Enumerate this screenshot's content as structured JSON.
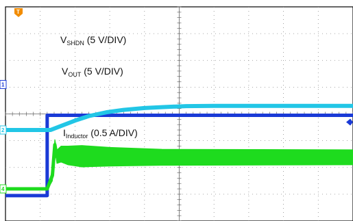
{
  "chart_data": {
    "type": "line",
    "xlim": [
      0,
      10
    ],
    "ylim": [
      -4,
      4
    ],
    "grid": true,
    "grid_divisions": {
      "x": 10,
      "y": 8
    },
    "trigger_marker": "T",
    "series": [
      {
        "channel": "1",
        "color": "#1a3ad6",
        "label": {
          "main": "V",
          "sub": "SHDN",
          "rest": " (5 V/DIV)"
        },
        "ground_div": 1.1,
        "stroke": 5,
        "x": [
          0,
          1.2,
          1.2,
          10
        ],
        "y": [
          -3.05,
          -3.05,
          -0.05,
          -0.05
        ]
      },
      {
        "channel": "2",
        "color": "#22c6e6",
        "label": {
          "main": "V",
          "sub": "OUT",
          "rest": " (5 V/DIV)"
        },
        "ground_div": -0.6,
        "stroke": 6,
        "x": [
          0,
          1.3,
          1.6,
          2.0,
          2.4,
          2.9,
          3.4,
          4.0,
          4.6,
          5.2,
          6.0,
          7.0,
          10
        ],
        "y": [
          -0.6,
          -0.6,
          -0.45,
          -0.25,
          -0.08,
          0.06,
          0.15,
          0.22,
          0.26,
          0.29,
          0.3,
          0.3,
          0.3
        ]
      },
      {
        "channel": "4",
        "color": "#1edb1e",
        "label": {
          "main": "I",
          "sub": "Inductor",
          "rest": " (0.5 A/DIV)"
        },
        "ground_div": -2.8,
        "stroke": 5,
        "x": [
          0,
          1.2,
          1.35,
          1.42,
          1.48,
          1.6,
          1.8,
          2.2,
          3.0,
          4.5,
          10
        ],
        "y": [
          -2.8,
          -2.8,
          -2.3,
          -1.15,
          -1.6,
          -1.5,
          -1.55,
          -1.58,
          -1.6,
          -1.62,
          -1.62
        ],
        "ripple": [
          0.05,
          0.05,
          0.2,
          0.2,
          0.25,
          0.3,
          0.35,
          0.4,
          0.35,
          0.3,
          0.28
        ]
      }
    ]
  }
}
